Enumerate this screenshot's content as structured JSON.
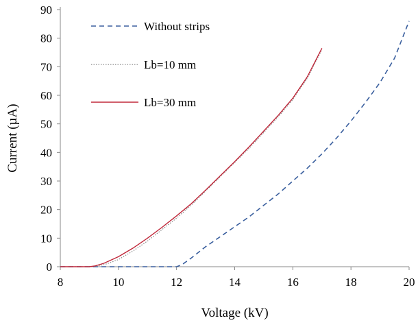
{
  "chart_data": {
    "type": "line",
    "title": "",
    "xlabel": "Voltage (kV)",
    "ylabel": "Current (µA)",
    "xlim": [
      8,
      20
    ],
    "ylim": [
      0,
      90
    ],
    "xticks": [
      "8",
      "10",
      "12",
      "14",
      "16",
      "18",
      "20"
    ],
    "yticks": [
      "0",
      "10",
      "20",
      "30",
      "40",
      "50",
      "60",
      "70",
      "80",
      "90"
    ],
    "grid": false,
    "legend_placement": "top-left",
    "series": [
      {
        "name": "Without strips",
        "style": "dashed",
        "color": "#3a5f9e",
        "x": [
          8,
          9,
          10,
          11,
          12,
          12.2,
          12.5,
          13,
          13.5,
          14,
          14.5,
          15,
          15.5,
          16,
          16.5,
          17,
          17.5,
          18,
          18.5,
          19,
          19.5,
          20
        ],
        "y": [
          0,
          0,
          0,
          0,
          0,
          0.8,
          3,
          7,
          10.5,
          14,
          17.5,
          21.5,
          25.5,
          30,
          34.5,
          39.5,
          45,
          51,
          57.5,
          64.5,
          73,
          86
        ]
      },
      {
        "name": "Lb=10 mm",
        "style": "dotted",
        "color": "#888888",
        "x": [
          8,
          8.5,
          9,
          9.3,
          9.6,
          10,
          10.5,
          11,
          11.5,
          12,
          12.5,
          13,
          13.5,
          14,
          14.5,
          15,
          15.5,
          16,
          16.5,
          17
        ],
        "y": [
          0,
          0,
          0,
          0.3,
          1,
          2.5,
          5.5,
          9,
          13,
          17,
          21.5,
          26.5,
          31.5,
          36.5,
          41.5,
          47,
          52.5,
          58.5,
          66,
          76
        ]
      },
      {
        "name": "Lb=30 mm",
        "style": "solid",
        "color": "#c0283a",
        "x": [
          8,
          8.5,
          9,
          9.2,
          9.5,
          10,
          10.5,
          11,
          11.5,
          12,
          12.5,
          13,
          13.5,
          14,
          14.5,
          15,
          15.5,
          16,
          16.5,
          17
        ],
        "y": [
          0,
          0,
          0,
          0.3,
          1.2,
          3.5,
          6.5,
          10,
          13.8,
          17.8,
          22,
          26.8,
          31.8,
          36.8,
          42,
          47.5,
          53,
          59,
          66.5,
          76.5
        ]
      }
    ]
  }
}
